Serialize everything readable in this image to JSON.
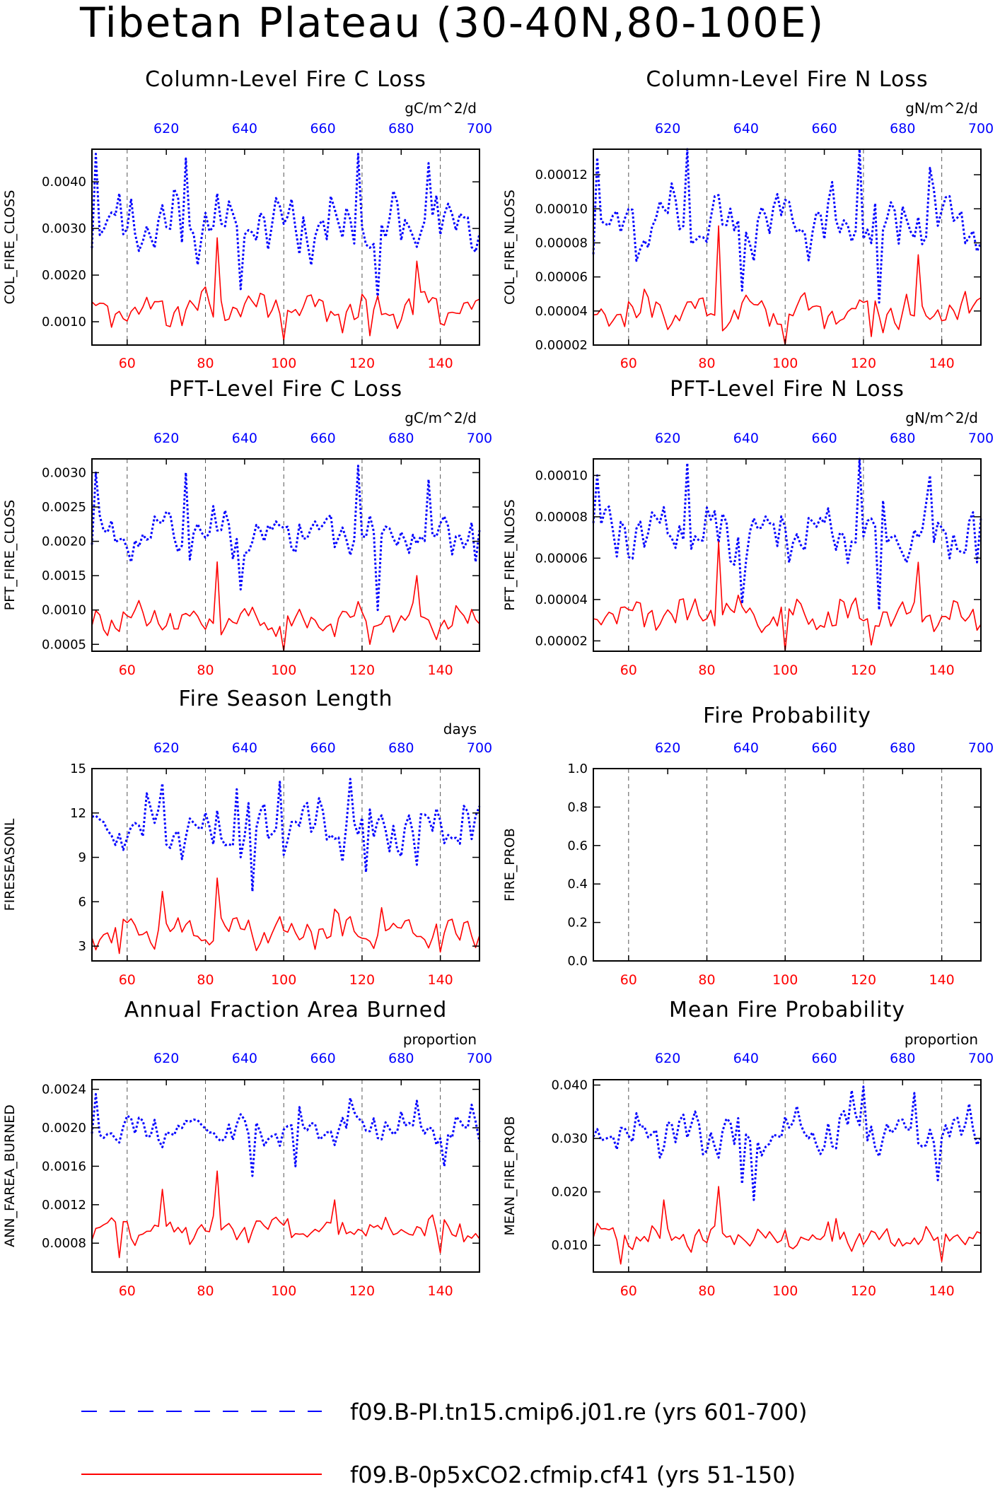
{
  "page_title": "Tibetan Plateau (30-40N,80-100E)",
  "colors": {
    "series_a": "#0000ff",
    "series_b": "#ff0000",
    "axis": "#000000",
    "grid": "#555555"
  },
  "legend": [
    {
      "label": "f09.B-PI.tn15.cmip6.j01.re (yrs 601-700)",
      "color": "#0000ff",
      "style": "dashed"
    },
    {
      "label": "f09.B-0p5xCO2.cfmip.cf41 (yrs 51-150)",
      "color": "#ff0000",
      "style": "solid"
    }
  ],
  "chart_data": [
    {
      "type": "line",
      "title": "Column-Level Fire C Loss",
      "units": "gC/m^2/d",
      "ylabel": "COL_FIRE_CLOSS",
      "ylim": [
        0.0005,
        0.0047
      ],
      "yticks": [
        "0.0010",
        "0.0020",
        "0.0030",
        "0.0040"
      ],
      "ytick_values": [
        0.001,
        0.002,
        0.003,
        0.004
      ],
      "x_bottom": {
        "lim": [
          51,
          150
        ],
        "ticks": [
          60,
          80,
          100,
          120,
          140
        ]
      },
      "x_top": {
        "lim": [
          601,
          700
        ],
        "ticks": [
          620,
          640,
          660,
          680,
          700
        ]
      },
      "grid": "dashed vertical at 60,80,100,120,140",
      "series": [
        {
          "years": "601-700",
          "base": 0.0031,
          "spread": 0.0006,
          "peaks": [
            [
              1,
              0.0046
            ],
            [
              24,
              0.0045
            ],
            [
              68,
              0.0046
            ],
            [
              86,
              0.0044
            ]
          ],
          "dips": [
            [
              38,
              0.0017
            ],
            [
              73,
              0.0015
            ],
            [
              98,
              0.0025
            ]
          ]
        },
        {
          "years": "51-150",
          "base": 0.0013,
          "spread": 0.00035,
          "peaks": [
            [
              32,
              0.0028
            ],
            [
              83,
              0.0023
            ]
          ],
          "dips": [
            [
              49,
              0.0006
            ],
            [
              71,
              0.0007
            ]
          ]
        }
      ]
    },
    {
      "type": "line",
      "title": "Column-Level Fire N Loss",
      "units": "gN/m^2/d",
      "ylabel": "COL_FIRE_NLOSS",
      "ylim": [
        2e-05,
        0.000135
      ],
      "yticks": [
        "0.00002",
        "0.00004",
        "0.00006",
        "0.00008",
        "0.00010",
        "0.00012"
      ],
      "ytick_values": [
        2e-05,
        4e-05,
        6e-05,
        8e-05,
        0.0001,
        0.00012
      ],
      "x_bottom": {
        "lim": [
          51,
          150
        ],
        "ticks": [
          60,
          80,
          100,
          120,
          140
        ]
      },
      "x_top": {
        "lim": [
          601,
          700
        ],
        "ticks": [
          620,
          640,
          660,
          680,
          700
        ]
      },
      "grid": "dashed vertical at 60,80,100,120,140",
      "series": [
        {
          "years": "601-700",
          "base": 9.2e-05,
          "spread": 1.6e-05,
          "peaks": [
            [
              1,
              0.00013
            ],
            [
              24,
              0.000135
            ],
            [
              68,
              0.000137
            ],
            [
              86,
              0.000124
            ]
          ],
          "dips": [
            [
              38,
              5.2e-05
            ],
            [
              73,
              4.5e-05
            ],
            [
              98,
              7.5e-05
            ]
          ]
        },
        {
          "years": "51-150",
          "base": 4e-05,
          "spread": 9e-06,
          "peaks": [
            [
              32,
              9e-05
            ],
            [
              83,
              7.3e-05
            ]
          ],
          "dips": [
            [
              49,
              2e-05
            ],
            [
              71,
              2.5e-05
            ]
          ]
        }
      ]
    },
    {
      "type": "line",
      "title": "PFT-Level Fire C Loss",
      "units": "gC/m^2/d",
      "ylabel": "PFT_FIRE_CLOSS",
      "ylim": [
        0.0004,
        0.0032
      ],
      "yticks": [
        "0.0005",
        "0.0010",
        "0.0015",
        "0.0020",
        "0.0025",
        "0.0030"
      ],
      "ytick_values": [
        0.0005,
        0.001,
        0.0015,
        0.002,
        0.0025,
        0.003
      ],
      "x_bottom": {
        "lim": [
          51,
          150
        ],
        "ticks": [
          60,
          80,
          100,
          120,
          140
        ]
      },
      "x_top": {
        "lim": [
          601,
          700
        ],
        "ticks": [
          620,
          640,
          660,
          680,
          700
        ]
      },
      "grid": "dashed vertical at 60,80,100,120,140",
      "series": [
        {
          "years": "601-700",
          "base": 0.0021,
          "spread": 0.0003,
          "peaks": [
            [
              1,
              0.003
            ],
            [
              24,
              0.003
            ],
            [
              68,
              0.0031
            ],
            [
              86,
              0.0029
            ]
          ],
          "dips": [
            [
              38,
              0.0013
            ],
            [
              73,
              0.001
            ],
            [
              98,
              0.0017
            ]
          ]
        },
        {
          "years": "51-150",
          "base": 0.00085,
          "spread": 0.0002,
          "peaks": [
            [
              32,
              0.0017
            ],
            [
              83,
              0.0015
            ]
          ],
          "dips": [
            [
              49,
              0.0004
            ],
            [
              71,
              0.0005
            ]
          ]
        }
      ]
    },
    {
      "type": "line",
      "title": "PFT-Level Fire N Loss",
      "units": "gN/m^2/d",
      "ylabel": "PFT_FIRE_NLOSS",
      "ylim": [
        1.5e-05,
        0.000108
      ],
      "yticks": [
        "0.00002",
        "0.00004",
        "0.00006",
        "0.00008",
        "0.00010"
      ],
      "ytick_values": [
        2e-05,
        4e-05,
        6e-05,
        8e-05,
        0.0001
      ],
      "x_bottom": {
        "lim": [
          51,
          150
        ],
        "ticks": [
          60,
          80,
          100,
          120,
          140
        ]
      },
      "x_top": {
        "lim": [
          601,
          700
        ],
        "ticks": [
          620,
          640,
          660,
          680,
          700
        ]
      },
      "grid": "dashed vertical at 60,80,100,120,140",
      "series": [
        {
          "years": "601-700",
          "base": 7.2e-05,
          "spread": 1.2e-05,
          "peaks": [
            [
              1,
              0.0001
            ],
            [
              24,
              0.000106
            ],
            [
              68,
              0.000108
            ],
            [
              86,
              0.0001
            ]
          ],
          "dips": [
            [
              38,
              3.8e-05
            ],
            [
              73,
              3.5e-05
            ],
            [
              98,
              5.8e-05
            ]
          ]
        },
        {
          "years": "51-150",
          "base": 3.2e-05,
          "spread": 7e-06,
          "peaks": [
            [
              32,
              6.8e-05
            ],
            [
              83,
              5.8e-05
            ]
          ],
          "dips": [
            [
              49,
              1.5e-05
            ],
            [
              71,
              1.8e-05
            ]
          ]
        }
      ]
    },
    {
      "type": "line",
      "title": "Fire Season Length",
      "units": "days",
      "ylabel": "FIRESEASONL",
      "ylim": [
        2,
        15
      ],
      "yticks": [
        "3",
        "6",
        "9",
        "12",
        "15"
      ],
      "ytick_values": [
        3,
        6,
        9,
        12,
        15
      ],
      "x_bottom": {
        "lim": [
          51,
          150
        ],
        "ticks": [
          60,
          80,
          100,
          120,
          140
        ]
      },
      "x_top": {
        "lim": [
          601,
          700
        ],
        "ticks": [
          620,
          640,
          660,
          680,
          700
        ]
      },
      "grid": "dashed vertical at 60,80,100,120,140",
      "series": [
        {
          "years": "601-700",
          "base": 11,
          "spread": 1.6,
          "peaks": [
            [
              18,
              14
            ],
            [
              66,
              14.3
            ],
            [
              48,
              14.1
            ],
            [
              37,
              13.6
            ]
          ],
          "dips": [
            [
              41,
              6.7
            ],
            [
              83,
              8.5
            ],
            [
              70,
              8
            ]
          ]
        },
        {
          "years": "51-150",
          "base": 4,
          "spread": 0.9,
          "peaks": [
            [
              18,
              6.7
            ],
            [
              32,
              7.6
            ],
            [
              62,
              5.5
            ],
            [
              74,
              5.6
            ]
          ],
          "dips": [
            [
              7,
              2.5
            ],
            [
              89,
              2.6
            ]
          ]
        }
      ]
    },
    {
      "type": "line",
      "title": "Fire Probability",
      "units": "",
      "ylabel": "FIRE_PROB",
      "ylim": [
        0,
        1
      ],
      "yticks": [
        "0.0",
        "0.2",
        "0.4",
        "0.6",
        "0.8",
        "1.0"
      ],
      "ytick_values": [
        0,
        0.2,
        0.4,
        0.6,
        0.8,
        1
      ],
      "x_bottom": {
        "lim": [
          51,
          150
        ],
        "ticks": [
          60,
          80,
          100,
          120,
          140
        ]
      },
      "x_top": {
        "lim": [
          601,
          700
        ],
        "ticks": [
          620,
          640,
          660,
          680,
          700
        ]
      },
      "grid": "dashed vertical at 60,80,100,120,140",
      "series": []
    },
    {
      "type": "line",
      "title": "Annual Fraction Area Burned",
      "units": "proportion",
      "ylabel": "ANN_FAREA_BURNED",
      "ylim": [
        0.0005,
        0.0025
      ],
      "yticks": [
        "0.0008",
        "0.0012",
        "0.0016",
        "0.0020",
        "0.0024"
      ],
      "ytick_values": [
        0.0008,
        0.0012,
        0.0016,
        0.002,
        0.0024
      ],
      "x_bottom": {
        "lim": [
          51,
          150
        ],
        "ticks": [
          60,
          80,
          100,
          120,
          140
        ]
      },
      "x_top": {
        "lim": [
          601,
          700
        ],
        "ticks": [
          620,
          640,
          660,
          680,
          700
        ]
      },
      "grid": "dashed vertical at 60,80,100,120,140",
      "series": [
        {
          "years": "601-700",
          "base": 0.002,
          "spread": 0.00015,
          "peaks": [
            [
              1,
              0.00235
            ],
            [
              66,
              0.00231
            ],
            [
              83,
              0.00228
            ],
            [
              97,
              0.00224
            ]
          ],
          "dips": [
            [
              41,
              0.0015
            ],
            [
              52,
              0.0016
            ],
            [
              90,
              0.0016
            ]
          ]
        },
        {
          "years": "51-150",
          "base": 0.00095,
          "spread": 0.00012,
          "peaks": [
            [
              32,
              0.00155
            ],
            [
              18,
              0.00136
            ],
            [
              62,
              0.00125
            ]
          ],
          "dips": [
            [
              7,
              0.00065
            ],
            [
              89,
              0.0007
            ]
          ]
        }
      ]
    },
    {
      "type": "line",
      "title": "Mean Fire Probability",
      "units": "proportion",
      "ylabel": "MEAN_FIRE_PROB",
      "ylim": [
        0.005,
        0.041
      ],
      "yticks": [
        "0.010",
        "0.020",
        "0.030",
        "0.040"
      ],
      "ytick_values": [
        0.01,
        0.02,
        0.03,
        0.04
      ],
      "x_bottom": {
        "lim": [
          51,
          150
        ],
        "ticks": [
          60,
          80,
          100,
          120,
          140
        ]
      },
      "x_top": {
        "lim": [
          601,
          700
        ],
        "ticks": [
          620,
          640,
          660,
          680,
          700
        ]
      },
      "grid": "dashed vertical at 60,80,100,120,140",
      "series": [
        {
          "years": "601-700",
          "base": 0.031,
          "spread": 0.0035,
          "peaks": [
            [
              69,
              0.0397
            ],
            [
              66,
              0.039
            ],
            [
              82,
              0.0385
            ],
            [
              96,
              0.0365
            ]
          ],
          "dips": [
            [
              41,
              0.0185
            ],
            [
              38,
              0.0215
            ],
            [
              88,
              0.0222
            ]
          ]
        },
        {
          "years": "51-150",
          "base": 0.0115,
          "spread": 0.002,
          "peaks": [
            [
              32,
              0.021
            ],
            [
              18,
              0.0185
            ],
            [
              62,
              0.015
            ]
          ],
          "dips": [
            [
              7,
              0.0065
            ],
            [
              89,
              0.007
            ]
          ]
        }
      ]
    }
  ]
}
